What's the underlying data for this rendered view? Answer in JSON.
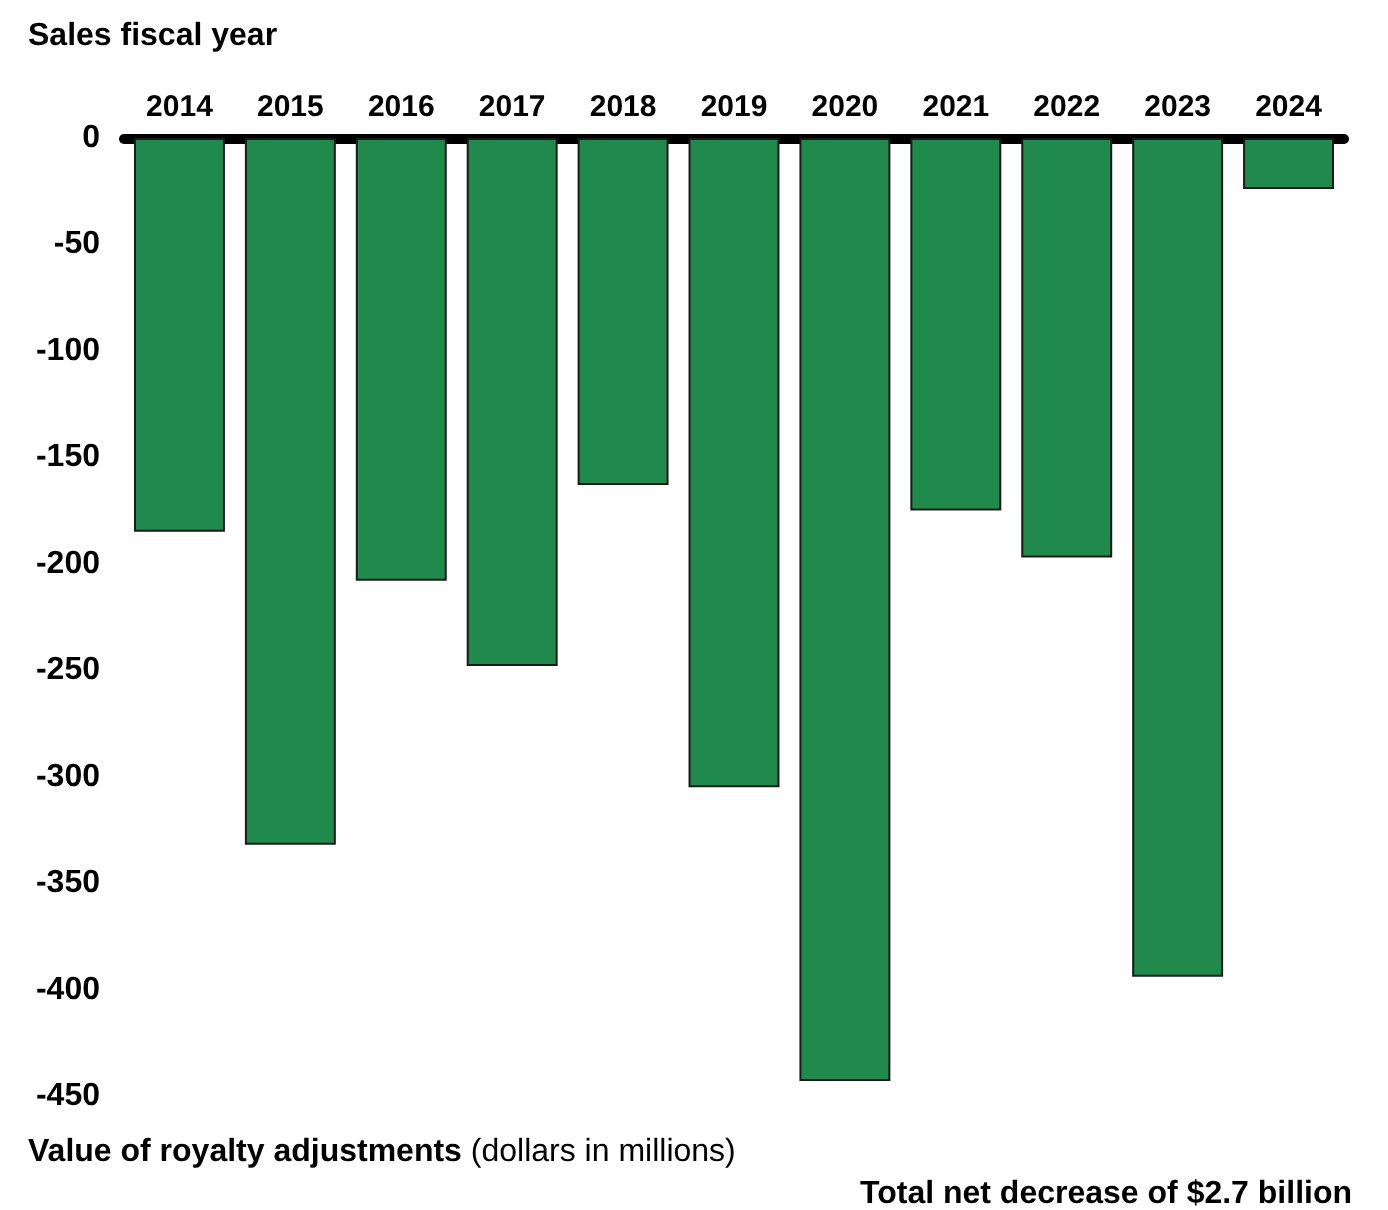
{
  "chart_data": {
    "type": "bar",
    "xlabel": "Sales fiscal year",
    "ylabel": "Value of royalty adjustments (dollars in millions)",
    "annotations": [
      "Total net decrease of $2.7 billion"
    ],
    "categories": [
      "2014",
      "2015",
      "2016",
      "2017",
      "2018",
      "2019",
      "2020",
      "2021",
      "2022",
      "2023",
      "2024"
    ],
    "values": [
      -185,
      -332,
      -208,
      -248,
      -163,
      -305,
      -443,
      -175,
      -197,
      -394,
      -24
    ],
    "color": "#1f8a4c",
    "ylim": [
      -450,
      0
    ],
    "yticks": [
      -450,
      -400,
      -350,
      -300,
      -250,
      -200,
      -150,
      -100,
      -50,
      0
    ],
    "grid": false
  }
}
